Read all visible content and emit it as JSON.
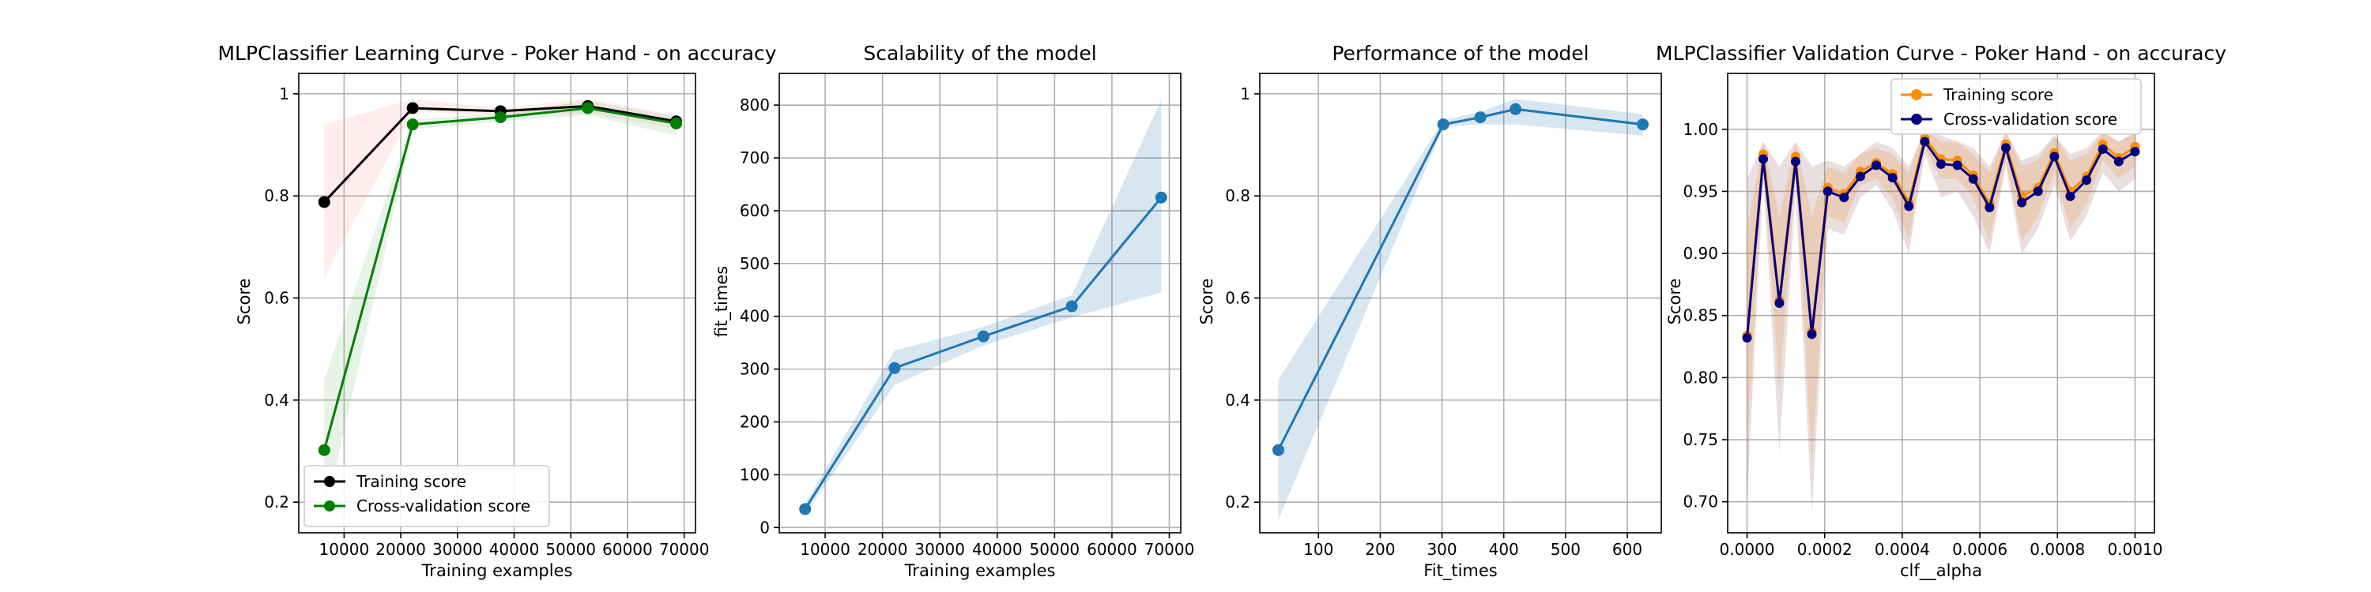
{
  "chart_data": [
    {
      "type": "line",
      "title": "MLPClassifier Learning Curve - Poker Hand - on accuracy",
      "xlabel": "Training examples",
      "ylabel": "Score",
      "xlim": [
        2000,
        72000
      ],
      "ylim": [
        0.14,
        1.04
      ],
      "xticks": [
        10000,
        20000,
        30000,
        40000,
        50000,
        60000,
        70000
      ],
      "yticks": [
        0.2,
        0.4,
        0.6,
        0.8,
        1.0
      ],
      "grid": true,
      "legend": "lower-left",
      "x": [
        6500,
        22100,
        37600,
        53000,
        68600
      ],
      "series": [
        {
          "name": "Training score",
          "color": "#000000",
          "values": [
            0.788,
            0.972,
            0.966,
            0.976,
            0.946
          ],
          "lower": [
            0.64,
            0.965,
            0.958,
            0.962,
            0.932
          ],
          "upper": [
            0.94,
            0.99,
            0.972,
            0.99,
            0.958
          ],
          "band_color": "#ff9999"
        },
        {
          "name": "Cross-validation score",
          "color": "#008000",
          "values": [
            0.302,
            0.94,
            0.954,
            0.972,
            0.942
          ],
          "lower": [
            0.17,
            0.93,
            0.946,
            0.958,
            0.918
          ],
          "upper": [
            0.44,
            0.95,
            0.962,
            0.986,
            0.956
          ],
          "band_color": "#7fbf7f"
        }
      ]
    },
    {
      "type": "line",
      "title": "Scalability of the model",
      "xlabel": "Training examples",
      "ylabel": "fit_times",
      "xlim": [
        2000,
        72000
      ],
      "ylim": [
        -10,
        860
      ],
      "xticks": [
        10000,
        20000,
        30000,
        40000,
        50000,
        60000,
        70000
      ],
      "yticks": [
        0,
        100,
        200,
        300,
        400,
        500,
        600,
        700,
        800
      ],
      "grid": true,
      "x": [
        6500,
        22100,
        37600,
        53000,
        68600
      ],
      "series": [
        {
          "color": "#1f77b4",
          "values": [
            35,
            302,
            362,
            419,
            625
          ],
          "lower": [
            25,
            270,
            345,
            398,
            445
          ],
          "upper": [
            45,
            335,
            380,
            440,
            810
          ],
          "band_color": "#1f77b4"
        }
      ]
    },
    {
      "type": "line",
      "title": "Performance of the model",
      "xlabel": "Fit_times",
      "ylabel": "Score",
      "xlim": [
        5,
        655
      ],
      "ylim": [
        0.14,
        1.04
      ],
      "xticks": [
        100,
        200,
        300,
        400,
        500,
        600
      ],
      "yticks": [
        0.2,
        0.4,
        0.6,
        0.8,
        1.0
      ],
      "grid": true,
      "x": [
        35,
        302,
        362,
        419,
        625
      ],
      "series": [
        {
          "color": "#1f77b4",
          "values": [
            0.302,
            0.94,
            0.954,
            0.97,
            0.94
          ],
          "lower": [
            0.165,
            0.935,
            0.94,
            0.94,
            0.918
          ],
          "upper": [
            0.44,
            0.948,
            0.965,
            0.99,
            0.96
          ],
          "band_color": "#1f77b4"
        }
      ]
    },
    {
      "type": "line",
      "title": "MLPClassifier Validation Curve - Poker Hand - on accuracy",
      "xlabel": "clf__alpha",
      "ylabel": "Score",
      "xlim": [
        -5e-05,
        0.00105
      ],
      "ylim": [
        0.675,
        1.045
      ],
      "xticks": [
        0.0,
        0.0002,
        0.0004,
        0.0006,
        0.0008,
        0.001
      ],
      "xtick_labels": [
        "0.0000",
        "0.0002",
        "0.0004",
        "0.0006",
        "0.0008",
        "0.0010"
      ],
      "yticks": [
        0.7,
        0.75,
        0.8,
        0.85,
        0.9,
        0.95,
        1.0
      ],
      "ytick_labels": [
        "0.70",
        "0.75",
        "0.80",
        "0.85",
        "0.90",
        "0.95",
        "1.00"
      ],
      "grid": true,
      "legend": "top-right",
      "x": [
        0.0,
        4.17e-05,
        8.33e-05,
        0.000125,
        0.000167,
        0.000208,
        0.00025,
        0.000292,
        0.000333,
        0.000375,
        0.000417,
        0.000458,
        0.0005,
        0.000542,
        0.000583,
        0.000625,
        0.000667,
        0.000708,
        0.00075,
        0.000792,
        0.000833,
        0.000875,
        0.000917,
        0.000958,
        0.001
      ],
      "series": [
        {
          "name": "Training score",
          "color": "#ff8c00",
          "values": [
            0.834,
            0.98,
            0.862,
            0.978,
            0.837,
            0.953,
            0.948,
            0.966,
            0.973,
            0.964,
            0.941,
            0.993,
            0.976,
            0.975,
            0.963,
            0.94,
            0.988,
            0.946,
            0.953,
            0.981,
            0.95,
            0.962,
            0.988,
            0.977,
            0.986
          ],
          "lower": [
            0.74,
            0.97,
            0.79,
            0.965,
            0.73,
            0.93,
            0.925,
            0.955,
            0.96,
            0.945,
            0.91,
            0.985,
            0.96,
            0.96,
            0.945,
            0.91,
            0.975,
            0.91,
            0.93,
            0.965,
            0.92,
            0.94,
            0.975,
            0.96,
            0.97
          ],
          "upper": [
            0.92,
            0.99,
            0.93,
            0.99,
            0.93,
            0.97,
            0.965,
            0.98,
            0.985,
            0.98,
            0.965,
            1.0,
            0.99,
            0.99,
            0.98,
            0.965,
            0.998,
            0.97,
            0.975,
            0.995,
            0.975,
            0.98,
            0.998,
            0.99,
            0.997
          ],
          "band_color": "#ff8c00"
        },
        {
          "name": "Cross-validation score",
          "color": "#000080",
          "values": [
            0.832,
            0.976,
            0.86,
            0.974,
            0.835,
            0.95,
            0.945,
            0.962,
            0.971,
            0.961,
            0.938,
            0.99,
            0.972,
            0.971,
            0.96,
            0.937,
            0.985,
            0.941,
            0.95,
            0.978,
            0.946,
            0.959,
            0.984,
            0.974,
            0.982
          ],
          "lower": [
            0.7,
            0.96,
            0.74,
            0.95,
            0.69,
            0.92,
            0.915,
            0.945,
            0.955,
            0.935,
            0.9,
            0.98,
            0.945,
            0.95,
            0.93,
            0.9,
            0.97,
            0.9,
            0.92,
            0.955,
            0.91,
            0.93,
            0.965,
            0.95,
            0.96
          ],
          "upper": [
            0.96,
            0.99,
            0.97,
            0.99,
            0.97,
            0.975,
            0.97,
            0.98,
            0.99,
            0.985,
            0.97,
            1.0,
            0.995,
            0.99,
            0.985,
            0.97,
            0.998,
            0.975,
            0.98,
            0.995,
            0.98,
            0.985,
            0.998,
            0.99,
            0.998
          ],
          "band_color": "#8b4c4c"
        }
      ]
    }
  ]
}
